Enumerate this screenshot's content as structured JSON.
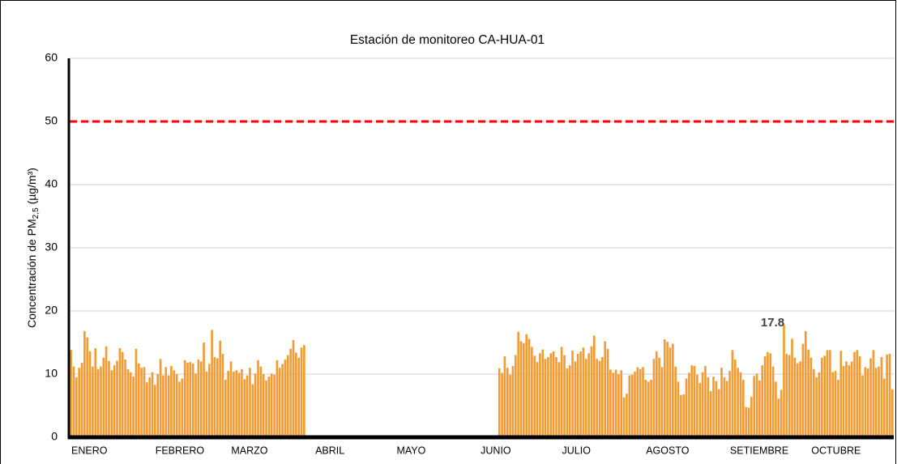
{
  "chart_data": {
    "type": "bar",
    "title": "Estación de monitoreo CA-HUA-01",
    "y_label": {
      "text": "Concentración de PM",
      "subscript": "2,5",
      "unit": "(µg/m³)"
    },
    "color": "#f39a32",
    "threshold": {
      "value": 50,
      "color": "#ff0000"
    },
    "ylim": [
      0,
      60
    ],
    "yticks": [
      0,
      10,
      20,
      30,
      40,
      50,
      60
    ],
    "grid": true,
    "highlight_index": 263,
    "categories": [
      "ENERO",
      null,
      null,
      null,
      null,
      null,
      null,
      null,
      null,
      null,
      null,
      null,
      null,
      null,
      null,
      null,
      null,
      null,
      null,
      null,
      null,
      null,
      null,
      null,
      null,
      null,
      null,
      null,
      null,
      null,
      null,
      "FEBRERO",
      null,
      null,
      null,
      null,
      null,
      null,
      null,
      null,
      null,
      null,
      null,
      null,
      null,
      null,
      null,
      null,
      null,
      null,
      null,
      null,
      null,
      null,
      null,
      null,
      null,
      null,
      null,
      "MARZO",
      null,
      null,
      null,
      null,
      null,
      null,
      null,
      null,
      null,
      null,
      null,
      null,
      null,
      null,
      null,
      null,
      null,
      null,
      null,
      null,
      null,
      null,
      null,
      null,
      null,
      null,
      null,
      null,
      null,
      null,
      "ABRIL",
      null,
      null,
      null,
      null,
      null,
      null,
      null,
      null,
      null,
      null,
      null,
      null,
      null,
      null,
      null,
      null,
      null,
      null,
      null,
      null,
      null,
      null,
      null,
      null,
      null,
      null,
      null,
      null,
      null,
      "MAYO",
      null,
      null,
      null,
      null,
      null,
      null,
      null,
      null,
      null,
      null,
      null,
      null,
      null,
      null,
      null,
      null,
      null,
      null,
      null,
      null,
      null,
      null,
      null,
      null,
      null,
      null,
      null,
      null,
      null,
      null,
      "JUNIO",
      null,
      null,
      null,
      null,
      null,
      null,
      null,
      null,
      null,
      null,
      null,
      null,
      null,
      null,
      null,
      null,
      null,
      null,
      null,
      null,
      null,
      null,
      null,
      null,
      null,
      null,
      null,
      null,
      null,
      "JULIO",
      null,
      null,
      null,
      null,
      null,
      null,
      null,
      null,
      null,
      null,
      null,
      null,
      null,
      null,
      null,
      null,
      null,
      null,
      null,
      null,
      null,
      null,
      null,
      null,
      null,
      null,
      null,
      null,
      null,
      null,
      "AGOSTO",
      null,
      null,
      null,
      null,
      null,
      null,
      null,
      null,
      null,
      null,
      null,
      null,
      null,
      null,
      null,
      null,
      null,
      null,
      null,
      null,
      null,
      null,
      null,
      null,
      null,
      null,
      null,
      null,
      null,
      null,
      "SETIEMBRE",
      null,
      null,
      null,
      null,
      null,
      null,
      null,
      null,
      null,
      null,
      null,
      null,
      null,
      null,
      null,
      null,
      null,
      null,
      null,
      null,
      null,
      null,
      null,
      null,
      null,
      null,
      null,
      null,
      null,
      "OCTUBRE",
      null,
      null,
      null,
      null,
      null,
      null,
      null,
      null,
      null,
      null,
      null,
      null,
      null,
      null,
      null,
      null,
      null,
      null,
      null,
      null,
      null,
      null,
      null,
      null,
      null,
      null,
      null,
      null,
      null,
      null
    ],
    "values": [
      13.8,
      11.2,
      9.5,
      11,
      11.8,
      16.8,
      15.8,
      13.6,
      11.2,
      14.1,
      10.8,
      11.2,
      12.6,
      14.4,
      12.1,
      10.6,
      11.4,
      12.1,
      14.1,
      13.5,
      12.3,
      10.8,
      10.3,
      9.6,
      14.0,
      11.7,
      11.0,
      11.1,
      8.7,
      9.5,
      10.3,
      8.3,
      10.0,
      12.4,
      9.8,
      11.1,
      9.8,
      11.3,
      10.6,
      10.0,
      8.8,
      9.3,
      12.2,
      11.8,
      11.9,
      11.7,
      10.1,
      12.3,
      12.0,
      15.0,
      10.4,
      11.6,
      17.0,
      12.7,
      12.5,
      15.3,
      13.2,
      9.1,
      10.5,
      12.0,
      10.4,
      10.6,
      10.2,
      10.8,
      9.2,
      9.8,
      11.0,
      8.4,
      10.1,
      12.2,
      11.2,
      10.0,
      9.0,
      9.6,
      10.1,
      9.9,
      12.2,
      11.0,
      11.6,
      12.3,
      13.0,
      14.0,
      15.4,
      13.4,
      12.6,
      14.2,
      14.6,
      null,
      null,
      null,
      null,
      null,
      null,
      null,
      null,
      null,
      null,
      null,
      null,
      null,
      null,
      null,
      null,
      null,
      null,
      null,
      null,
      null,
      null,
      null,
      null,
      null,
      null,
      null,
      null,
      null,
      null,
      null,
      null,
      null,
      null,
      null,
      null,
      null,
      null,
      null,
      null,
      null,
      null,
      null,
      null,
      null,
      null,
      null,
      null,
      null,
      null,
      null,
      null,
      null,
      null,
      null,
      null,
      null,
      null,
      null,
      null,
      null,
      null,
      null,
      null,
      null,
      null,
      null,
      null,
      null,
      null,
      null,
      10.9,
      10.2,
      12.8,
      11.0,
      9.9,
      11.3,
      13.0,
      16.7,
      15.2,
      14.9,
      16.3,
      15.6,
      14.3,
      12.9,
      11.9,
      13.3,
      13.9,
      12.4,
      12.7,
      13.3,
      13.6,
      12.7,
      11.9,
      14.3,
      13.0,
      10.9,
      11.4,
      13.7,
      12.0,
      13.2,
      13.6,
      14.2,
      12.4,
      13.3,
      14.4,
      16.1,
      12.4,
      12.1,
      12.7,
      15.2,
      14.0,
      10.7,
      10.2,
      10.7,
      10.0,
      10.6,
      6.3,
      6.9,
      9.8,
      9.9,
      10.4,
      11.1,
      10.8,
      11.1,
      9.1,
      8.8,
      9.1,
      12.4,
      13.6,
      12.6,
      11.1,
      15.5,
      15.1,
      14.2,
      14.8,
      11.2,
      8.8,
      6.7,
      6.8,
      9.3,
      10.2,
      11.4,
      11.3,
      9.9,
      8.6,
      10.3,
      11.3,
      9.5,
      7.3,
      9.6,
      8.9,
      7.6,
      11.0,
      9.5,
      8.9,
      10.5,
      13.8,
      12.3,
      11.0,
      10.3,
      9.1,
      4.8,
      4.7,
      6.4,
      9.7,
      10.1,
      9.0,
      11.4,
      12.8,
      13.5,
      13.3,
      11.2,
      8.8,
      6.1,
      7.5,
      17.8,
      13.2,
      13.0,
      15.6,
      12.6,
      11.7,
      12.0,
      14.8,
      16.8,
      13.9,
      12.6,
      10.8,
      9.5,
      10.3,
      12.6,
      12.9,
      13.8,
      13.8,
      10.3,
      10.5,
      9.1,
      13.7,
      11.3,
      12.0,
      11.4,
      12.0,
      13.5,
      13.8,
      12.8,
      9.8,
      11.1,
      10.9,
      12.5,
      13.8,
      11.0,
      11.2,
      12.7,
      9.3,
      13.1,
      13.2,
      7.6
    ]
  }
}
